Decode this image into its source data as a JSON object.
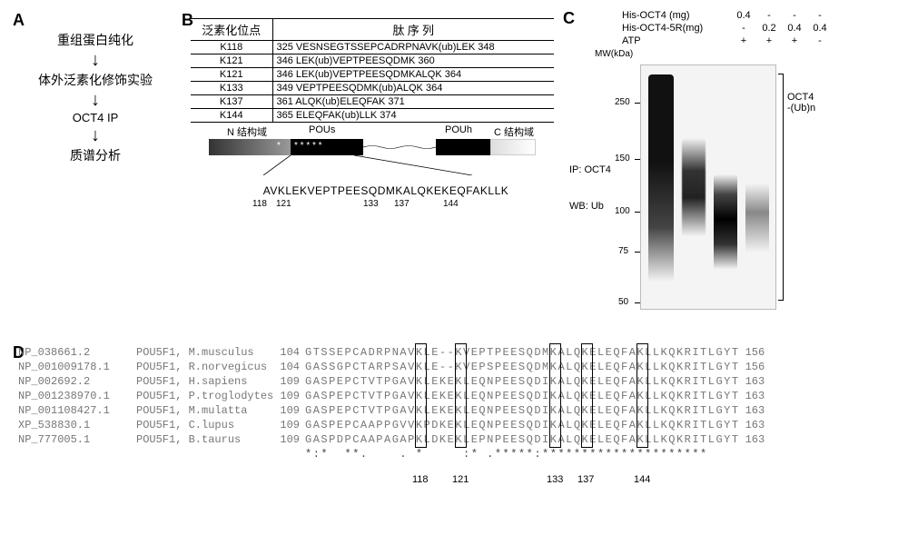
{
  "panelA": {
    "label": "A",
    "steps": [
      "重组蛋白纯化",
      "体外泛素化修饰实验",
      "OCT4 IP",
      "质谱分析"
    ]
  },
  "panelB": {
    "label": "B",
    "header_site": "泛素化位点",
    "header_seq": "肽 序 列",
    "rows": [
      {
        "site": "K118",
        "seq": "325 VESNSEGTSSEPCADRPNAVK(ub)LEK 348"
      },
      {
        "site": "K121",
        "seq": "346 LEK(ub)VEPTPEESQDMK 360"
      },
      {
        "site": "K121",
        "seq": "346 LEK(ub)VEPTPEESQDMKALQK 364"
      },
      {
        "site": "K133",
        "seq": "349 VEPTPEESQDMK(ub)ALQK 364"
      },
      {
        "site": "K137",
        "seq": "361 ALQK(ub)ELEQFAK 371"
      },
      {
        "site": "K144",
        "seq": "365 ELEQFAK(ub)LLK 374"
      }
    ],
    "domains": {
      "n": "N 结构域",
      "pous": "POUs",
      "pouh": "POUh",
      "c": "C 结构域"
    },
    "seq": "AVKLEKVEPTPEESQDMKALQKEKEQFAKLLK",
    "positions": [
      "118",
      "121",
      "133",
      "137",
      "144"
    ]
  },
  "panelC": {
    "label": "C",
    "rows": [
      {
        "label": "His-OCT4      (mg)",
        "vals": [
          "0.4",
          "-",
          "-",
          "-"
        ]
      },
      {
        "label": "His-OCT4-5R(mg)",
        "vals": [
          "-",
          "0.2",
          "0.4",
          "0.4"
        ]
      },
      {
        "label": "ATP",
        "vals": [
          "+",
          "+",
          "+",
          "-"
        ]
      }
    ],
    "mw_label": "MW(kDa)",
    "markers": [
      "250",
      "150",
      "100",
      "75",
      "50"
    ],
    "ip": "IP: OCT4",
    "wb": "WB: Ub",
    "side_label": "OCT4\n-(Ub)n"
  },
  "panelD": {
    "label": "D",
    "alignment": [
      {
        "acc": "NP_038661.2",
        "sp": "POU5F1, M.musculus",
        "start": "104",
        "seq": "GTSSEPCADRPNAVKLE--KVEPTPEESQDMKALQKELEQFAKLLKQKRITLGYT",
        "end": "156"
      },
      {
        "acc": "NP_001009178.1",
        "sp": "POU5F1, R.norvegicus",
        "start": "104",
        "seq": "GASSGPCTARPSAVKLE--KVEPSPEESQDMKALQKELEQFAKLLKQKRITLGYT",
        "end": "156"
      },
      {
        "acc": "NP_002692.2",
        "sp": "POU5F1, H.sapiens",
        "start": "109",
        "seq": "GASPEPCTVTPGAVKLEKEKLEQNPEESQDIKALQKELEQFAKLLKQKRITLGYT",
        "end": "163"
      },
      {
        "acc": "NP_001238970.1",
        "sp": "POU5F1, P.troglodytes",
        "start": "109",
        "seq": "GASPEPCTVTPGAVKLEKEKLEQNPEESQDIKALQKELEQFAKLLKQKRITLGYT",
        "end": "163"
      },
      {
        "acc": "NP_001108427.1",
        "sp": "POU5F1, M.mulatta",
        "start": "109",
        "seq": "GASPEPCTVTPGAVKLEKEKLEQNPEESQDIKALQKELEQFAKLLKQKRITLGYT",
        "end": "163"
      },
      {
        "acc": "XP_538830.1",
        "sp": "POU5F1, C.lupus",
        "start": "109",
        "seq": "GASPEPCAAPPGVVKPDKEKLEQNPEESQDIKALQKELEQFAKLLKQKRITLGYT",
        "end": "163"
      },
      {
        "acc": "NP_777005.1",
        "sp": "POU5F1, B.taurus",
        "start": "109",
        "seq": "GASPDPCAAPAGAPKLDKEKLEPNPEESQDIKALQKELEQFAKLLKQKRITLGYT",
        "end": "163"
      }
    ],
    "consensus": "*:*  **.    . *     :* .*****:********************* ",
    "box_positions": [
      "118",
      "121",
      "133",
      "137",
      "144"
    ]
  },
  "style": {
    "bg": "#ffffff",
    "text": "#000000",
    "aln_color": "#777777",
    "font_mono": "Courier New",
    "font_main": "Arial"
  }
}
